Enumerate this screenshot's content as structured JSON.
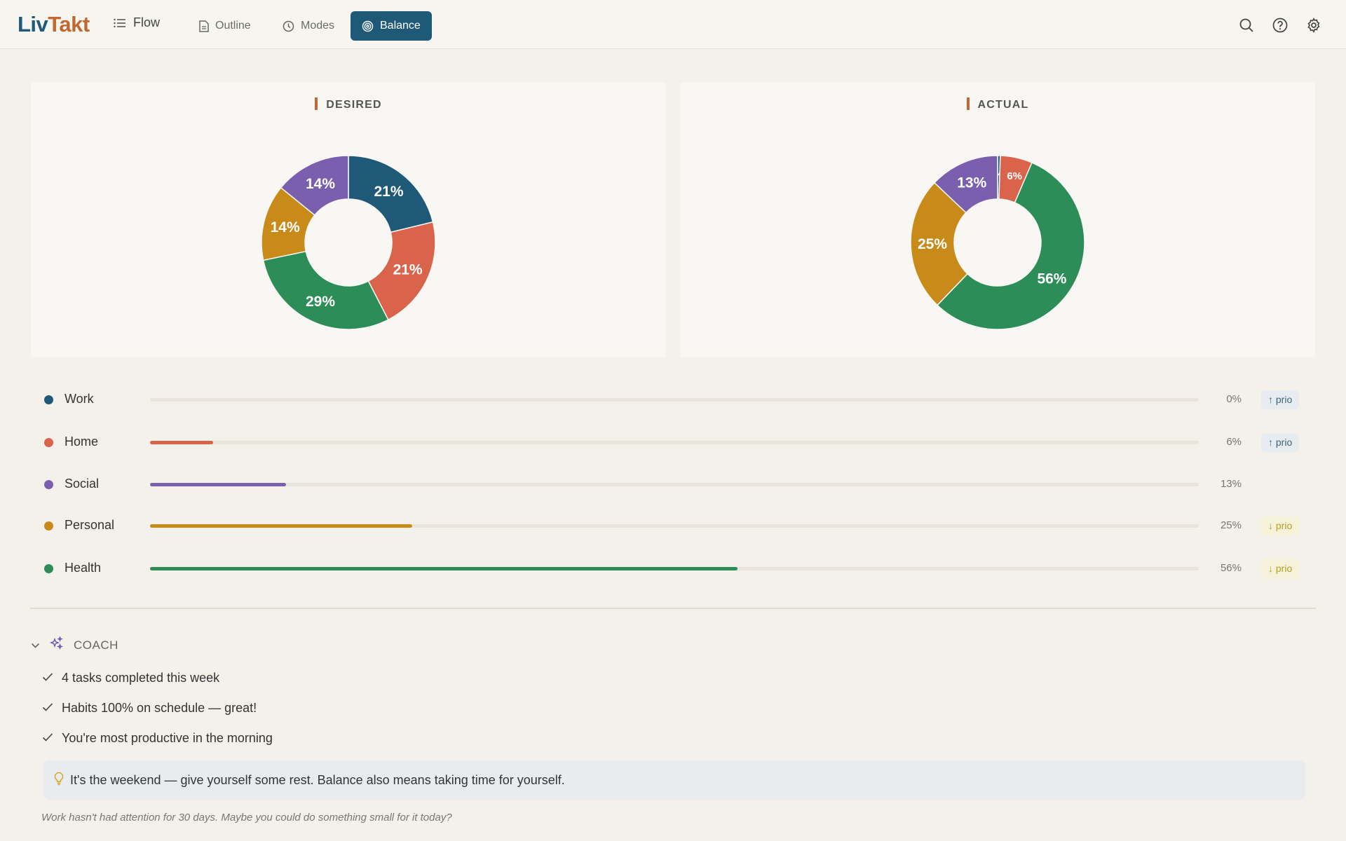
{
  "app": {
    "logo_part1": "Liv",
    "logo_part2": "Takt",
    "nav": {
      "flow": "Flow",
      "outline": "Outline",
      "modes": "Modes",
      "balance": "Balance"
    },
    "icons": [
      "search-icon",
      "help-icon",
      "settings-icon"
    ]
  },
  "colors": {
    "Work": "#1e5a78",
    "Home": "#d9634b",
    "Social": "#7a5fae",
    "Personal": "#c88b1a",
    "Health": "#2d8d58",
    "accent": "#c0682f"
  },
  "desired": {
    "title": "DESIRED"
  },
  "actual": {
    "title": "ACTUAL"
  },
  "chart_data": [
    {
      "type": "pie",
      "title": "DESIRED",
      "categories": [
        "Work",
        "Home",
        "Health",
        "Personal",
        "Social"
      ],
      "values": [
        21,
        21,
        29,
        14,
        14
      ],
      "labels": [
        "21%",
        "21%",
        "29%",
        "14%",
        "14%"
      ]
    },
    {
      "type": "pie",
      "title": "ACTUAL",
      "categories": [
        "Work",
        "Home",
        "Health",
        "Personal",
        "Social"
      ],
      "values": [
        0.5,
        6,
        56,
        25,
        13
      ],
      "labels": [
        "%",
        "6%",
        "56%",
        "25%",
        "13%"
      ]
    }
  ],
  "rows": [
    {
      "name": "Work",
      "pct": "0%",
      "value": 0,
      "prio": "↑ prio",
      "prio_dir": "up"
    },
    {
      "name": "Home",
      "pct": "6%",
      "value": 6,
      "prio": "↑ prio",
      "prio_dir": "up"
    },
    {
      "name": "Social",
      "pct": "13%",
      "value": 13,
      "prio": "",
      "prio_dir": ""
    },
    {
      "name": "Personal",
      "pct": "25%",
      "value": 25,
      "prio": "↓ prio",
      "prio_dir": "down"
    },
    {
      "name": "Health",
      "pct": "56%",
      "value": 56,
      "prio": "↓ prio",
      "prio_dir": "down"
    }
  ],
  "coach": {
    "title": "COACH",
    "items": [
      "4 tasks completed this week",
      "Habits 100% on schedule — great!",
      "You're most productive in the morning"
    ],
    "tip": "It's the weekend — give yourself some rest. Balance also means taking time for yourself.",
    "note": "Work hasn't had attention for 30 days. Maybe you could do something small for it today?"
  }
}
